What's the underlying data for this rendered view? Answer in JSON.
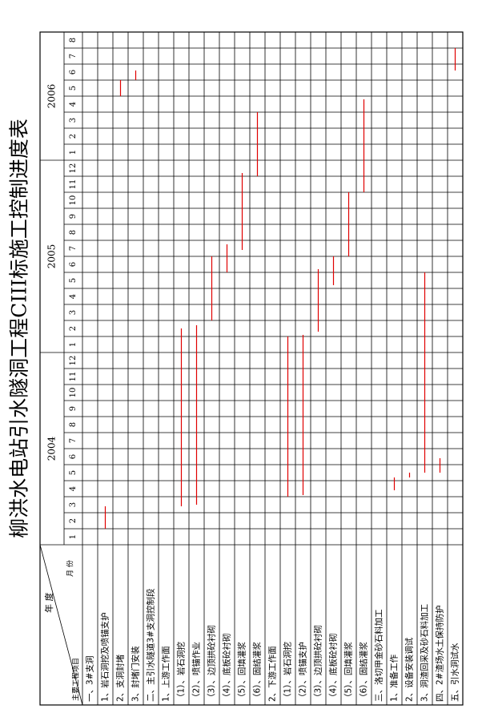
{
  "title": "柳洪水电站引水隧洞工程CIII标施工控制进度表",
  "header": {
    "year": "年 度",
    "month": "月 份",
    "item": "主要工程项目"
  },
  "years": [
    {
      "label": "2004",
      "months": [
        "1",
        "2",
        "3",
        "4",
        "5",
        "6",
        "7",
        "8",
        "9",
        "10",
        "11",
        "12"
      ]
    },
    {
      "label": "2005",
      "months": [
        "1",
        "2",
        "3",
        "4",
        "5",
        "6",
        "7",
        "8",
        "9",
        "10",
        "11",
        "12"
      ]
    },
    {
      "label": "2006",
      "months": [
        "1",
        "2",
        "3",
        "4",
        "5",
        "6",
        "7",
        "8"
      ]
    }
  ],
  "tasks": [
    {
      "name": "一、3#支洞"
    },
    {
      "name": "1、岩石洞挖及喷锚支护",
      "start": 1.0,
      "end": 2.4
    },
    {
      "name": "2、支洞封堵",
      "start": 28,
      "end": 29
    },
    {
      "name": "3、封堵门安装",
      "start": 29,
      "end": 29.6
    },
    {
      "name": "二、主引水隧道3#支洞控制段"
    },
    {
      "name": "1、上游工作面"
    },
    {
      "name": "（1）、岩石洞挖",
      "start": 2.4,
      "end": 13.5
    },
    {
      "name": "（2）、喷锚作业",
      "start": 2.5,
      "end": 13.7
    },
    {
      "name": "（3）、边顶拱砼衬砌",
      "start": 14,
      "end": 18
    },
    {
      "name": "（4）、底板砼衬砌",
      "start": 17,
      "end": 18.75
    },
    {
      "name": "（5）、回填灌浆",
      "start": 18.4,
      "end": 23.2
    },
    {
      "name": "（6）、固结灌浆",
      "start": 23,
      "end": 27
    },
    {
      "name": "2、下游工作面"
    },
    {
      "name": "（1）、岩石洞挖",
      "start": 3,
      "end": 13
    },
    {
      "name": "（2）、喷锚支护",
      "start": 3.1,
      "end": 13.1
    },
    {
      "name": "（3）、边顶拱砼衬砌",
      "start": 13.3,
      "end": 17.2
    },
    {
      "name": "（4）、底板砼衬砌",
      "start": 16.2,
      "end": 18
    },
    {
      "name": "（5）、回填灌浆",
      "start": 18,
      "end": 22
    },
    {
      "name": "（6）、固结灌浆",
      "start": 22,
      "end": 27.8
    },
    {
      "name": "三、洛切甲金砂石料加工"
    },
    {
      "name": "1、准备工作",
      "start": 3.4,
      "end": 4.2
    },
    {
      "name": "2、设备安装调试",
      "start": 4.2,
      "end": 4.5
    },
    {
      "name": "3、洞渣回采及砂石料加工",
      "start": 4.5,
      "end": 17
    },
    {
      "name": "四、2#渣场水土保持防护",
      "start": 4.5,
      "end": 5.4
    },
    {
      "name": "五、引水洞试水",
      "start": 29.6,
      "end": 31
    }
  ]
}
